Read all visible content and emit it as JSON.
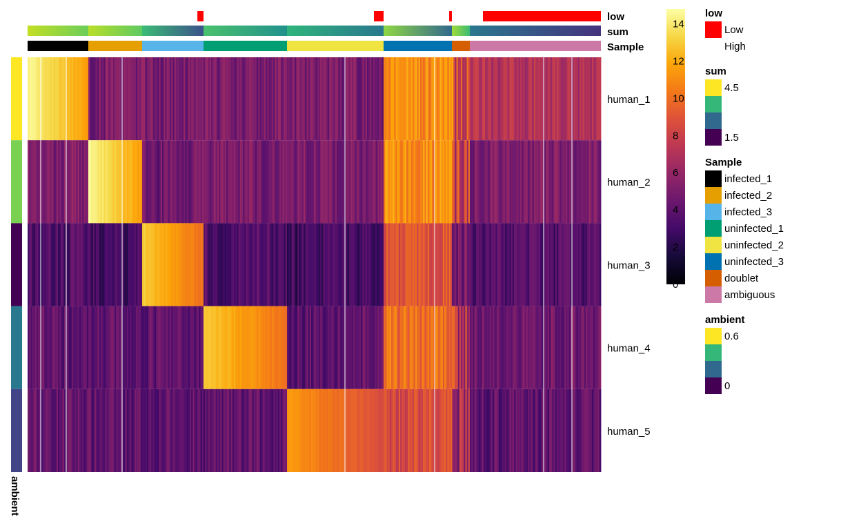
{
  "chart_data": {
    "type": "heatmap",
    "rows": [
      "human_1",
      "human_2",
      "human_3",
      "human_4",
      "human_5"
    ],
    "column_groups": [
      {
        "sample": "infected_1",
        "levels": [
          13,
          5,
          3.5,
          4,
          4.2
        ],
        "sum": [
          "#c2df23",
          "#6ccd5a"
        ],
        "low": []
      },
      {
        "sample": "infected_2",
        "levels": [
          5,
          13,
          3,
          4,
          4
        ],
        "sum": [
          "#b8de29",
          "#5ec962"
        ],
        "low": []
      },
      {
        "sample": "infected_3",
        "levels": [
          5,
          4.5,
          11.5,
          4,
          4
        ],
        "sum": [
          "#3bbb75",
          "#3b528b"
        ],
        "low": [
          [
            0.9,
            1
          ]
        ]
      },
      {
        "sample": "uninfected_1",
        "levels": [
          5,
          5,
          3.5,
          11.5,
          4
        ],
        "sum": [
          "#4ac16d",
          "#21918c"
        ],
        "low": []
      },
      {
        "sample": "uninfected_2",
        "levels": [
          5,
          5,
          3,
          4,
          10
        ],
        "sum": [
          "#2fb47c",
          "#2a788e"
        ],
        "low": [
          [
            0.9,
            1
          ]
        ]
      },
      {
        "sample": "uninfected_3",
        "levels": [
          11,
          11,
          9,
          10,
          8.5
        ],
        "sum": [
          "#8fd744",
          "#31688e"
        ],
        "low": [
          [
            0.96,
            1
          ]
        ]
      },
      {
        "sample": "doublet",
        "levels": [
          9,
          8,
          6,
          7,
          7
        ],
        "sum": [
          "#a0da39",
          "#3bbb75"
        ],
        "low": []
      },
      {
        "sample": "ambiguous",
        "levels": [
          7,
          5,
          3.5,
          4.5,
          4
        ],
        "sum": [
          "#2a788e",
          "#46327e"
        ],
        "low": [
          [
            0.1,
            1
          ]
        ]
      }
    ],
    "row_annotation": {
      "name": "ambient",
      "colors": [
        "#fde725",
        "#7ad151",
        "#440154",
        "#2a788e",
        "#414487"
      ]
    },
    "colorbar": {
      "ticks": [
        0,
        2,
        4,
        6,
        8,
        10,
        12,
        14
      ],
      "range": [
        0,
        14.8
      ],
      "palette": "inferno"
    }
  },
  "annotations": {
    "low": "low",
    "sum": "sum",
    "sample": "Sample",
    "ambient": "ambient"
  },
  "legend": {
    "low": {
      "title": "low",
      "items": [
        {
          "label": "Low",
          "color": "#ff0000"
        },
        {
          "label": "High",
          "color": "#ffffff"
        }
      ]
    },
    "sum": {
      "title": "sum",
      "labels": [
        "4.5",
        "1.5"
      ],
      "colors": [
        "#fde725",
        "#35b779",
        "#31688e",
        "#440154"
      ]
    },
    "sample": {
      "title": "Sample",
      "items": [
        {
          "label": "infected_1",
          "color": "#000000"
        },
        {
          "label": "infected_2",
          "color": "#e69f00"
        },
        {
          "label": "infected_3",
          "color": "#56b4e9"
        },
        {
          "label": "uninfected_1",
          "color": "#009e73"
        },
        {
          "label": "uninfected_2",
          "color": "#f0e442"
        },
        {
          "label": "uninfected_3",
          "color": "#0072b2"
        },
        {
          "label": "doublet",
          "color": "#d55e00"
        },
        {
          "label": "ambiguous",
          "color": "#cc79a7"
        }
      ]
    },
    "ambient": {
      "title": "ambient",
      "labels": [
        "0.6",
        "0"
      ],
      "colors": [
        "#fde725",
        "#35b779",
        "#31688e",
        "#440154"
      ]
    }
  }
}
